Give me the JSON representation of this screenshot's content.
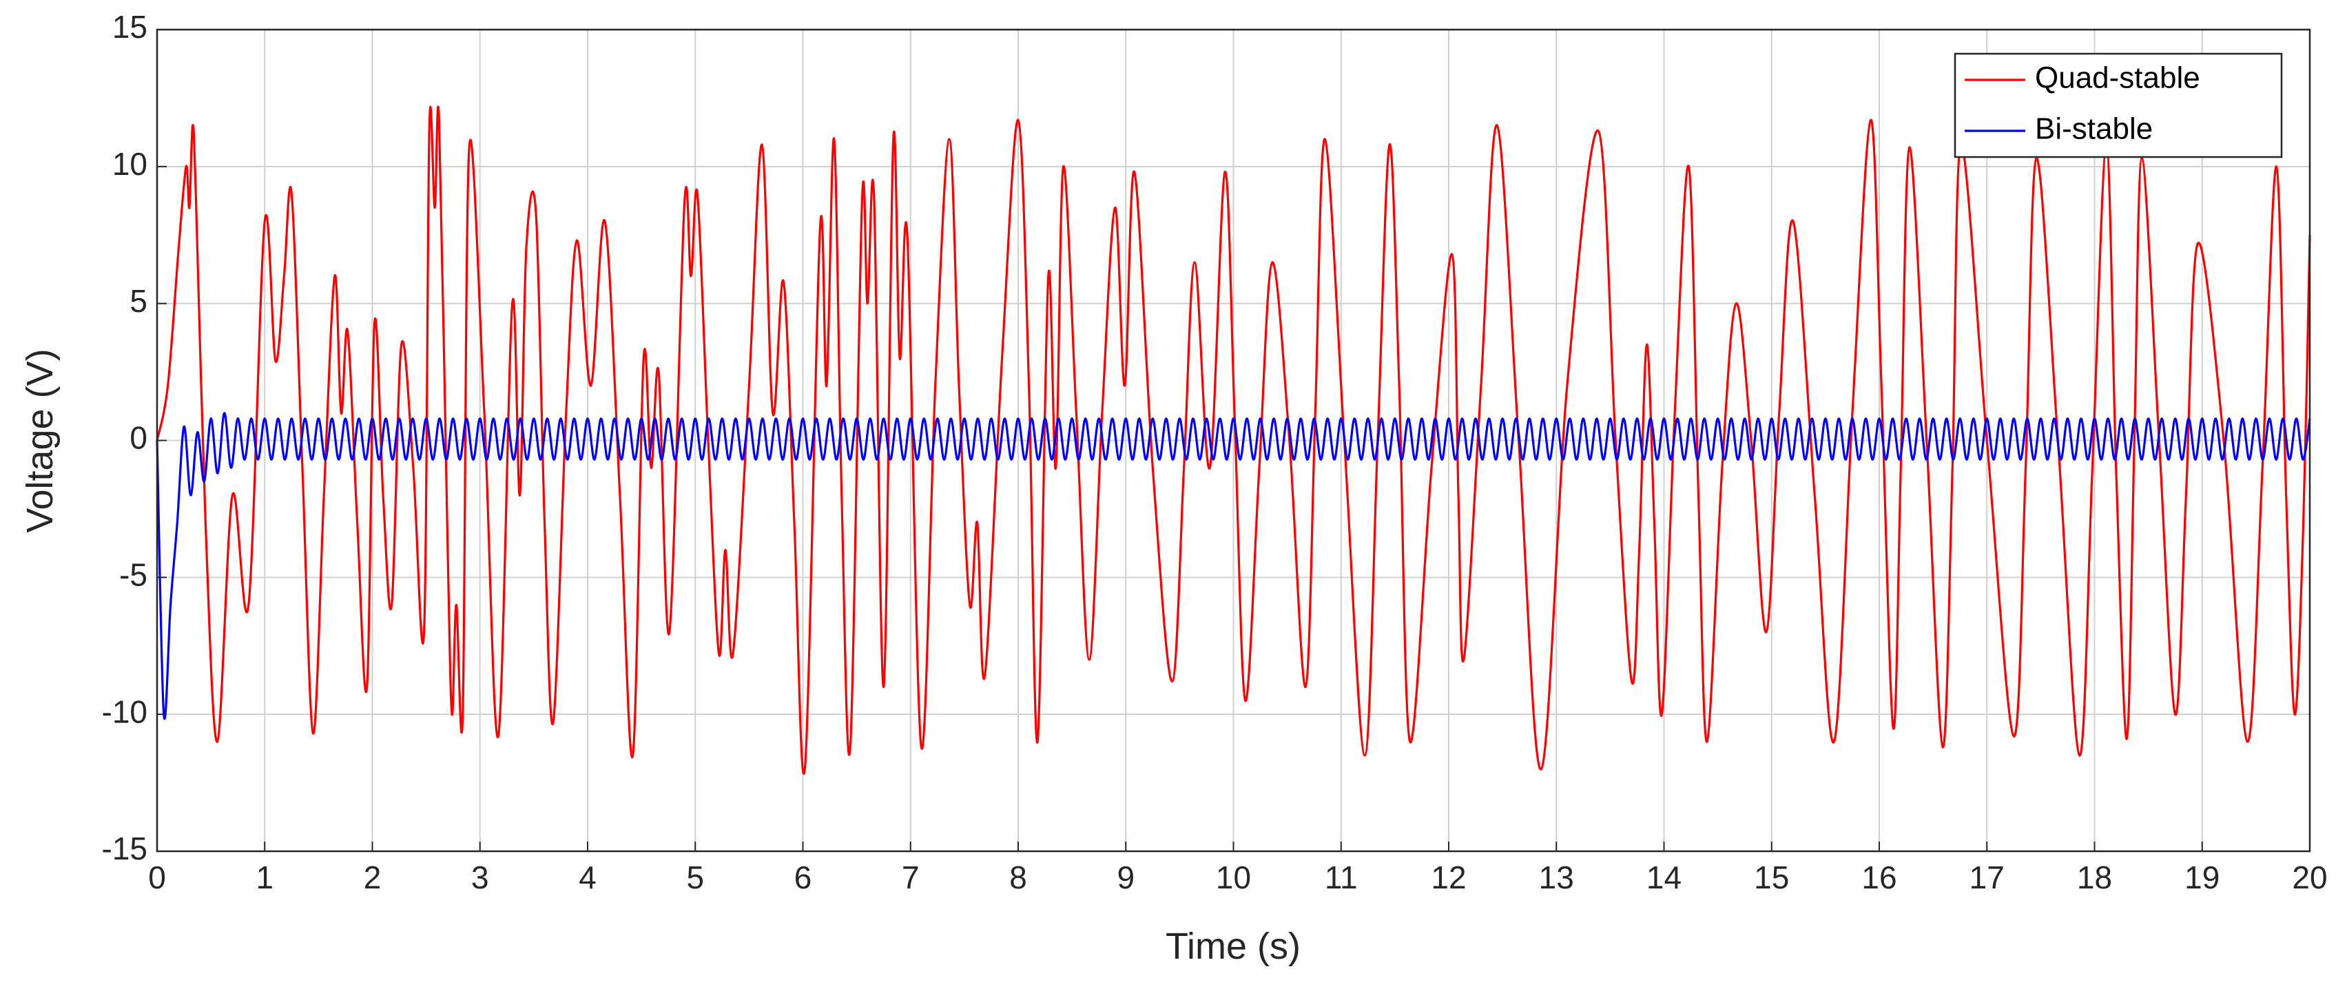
{
  "chart_data": {
    "type": "line",
    "xlabel": "Time (s)",
    "ylabel": "Voltage (V)",
    "xlim": [
      0,
      20
    ],
    "ylim": [
      -15,
      15
    ],
    "xticks": [
      0,
      1,
      2,
      3,
      4,
      5,
      6,
      7,
      8,
      9,
      10,
      11,
      12,
      13,
      14,
      15,
      16,
      17,
      18,
      19,
      20
    ],
    "yticks": [
      -15,
      -10,
      -5,
      0,
      5,
      10,
      15
    ],
    "grid": true,
    "legend": "top-right",
    "series": [
      {
        "name": "Quad-stable",
        "color": "#ff0000",
        "x": [
          0,
          0.1,
          0.2,
          0.27,
          0.3,
          0.33,
          0.36,
          0.45,
          0.56,
          0.7,
          0.85,
          1.0,
          1.1,
          1.18,
          1.25,
          1.35,
          1.45,
          1.55,
          1.65,
          1.71,
          1.77,
          1.86,
          1.95,
          2.02,
          2.1,
          2.18,
          2.27,
          2.38,
          2.48,
          2.53,
          2.58,
          2.62,
          2.7,
          2.74,
          2.78,
          2.84,
          2.9,
          3.04,
          3.17,
          3.3,
          3.37,
          3.43,
          3.52,
          3.6,
          3.68,
          3.8,
          3.9,
          4.03,
          4.16,
          4.3,
          4.42,
          4.52,
          4.59,
          4.66,
          4.76,
          4.9,
          4.96,
          5.02,
          5.12,
          5.22,
          5.28,
          5.35,
          5.5,
          5.62,
          5.72,
          5.82,
          5.92,
          6.02,
          6.16,
          6.22,
          6.29,
          6.36,
          6.44,
          6.55,
          6.6,
          6.66,
          6.75,
          6.84,
          6.9,
          6.97,
          7.1,
          7.23,
          7.36,
          7.45,
          7.55,
          7.62,
          7.69,
          7.85,
          8.0,
          8.1,
          8.18,
          8.28,
          8.35,
          8.42,
          8.54,
          8.66,
          8.78,
          8.9,
          8.99,
          9.08,
          9.25,
          9.43,
          9.54,
          9.64,
          9.78,
          9.92,
          10.01,
          10.11,
          10.24,
          10.36,
          10.52,
          10.67,
          10.76,
          10.85,
          11.03,
          11.22,
          11.34,
          11.45,
          11.54,
          11.64,
          11.84,
          12.03,
          12.09,
          12.14,
          12.3,
          12.45,
          12.65,
          12.86,
          13.1,
          13.39,
          13.55,
          13.7,
          13.77,
          13.84,
          13.91,
          13.98,
          14.1,
          14.23,
          14.32,
          14.4,
          14.54,
          14.67,
          14.81,
          14.95,
          15.07,
          15.2,
          15.4,
          15.58,
          15.75,
          15.92,
          16.02,
          16.13,
          16.2,
          16.28,
          16.44,
          16.59,
          16.68,
          16.76,
          17.0,
          17.25,
          17.36,
          17.46,
          17.66,
          17.86,
          17.98,
          18.11,
          18.2,
          18.3,
          18.37,
          18.44,
          18.6,
          18.75,
          18.85,
          18.96,
          19.2,
          19.42,
          19.56,
          19.69,
          19.78,
          19.86,
          19.94,
          20
        ],
        "values": [
          0,
          2,
          7,
          10,
          8.5,
          11.5,
          9,
          -3,
          -11,
          -2,
          -6,
          8,
          2.9,
          6,
          9,
          -1,
          -10.7,
          -2,
          6,
          1,
          4,
          -3,
          -9,
          4.3,
          -2,
          -6,
          3.5,
          -1,
          -7,
          11.5,
          8.5,
          11.7,
          -4,
          -10,
          -6,
          -10,
          10.7,
          1,
          -10.8,
          5,
          -2,
          7,
          8.3,
          -3,
          -10.3,
          1,
          7.3,
          2,
          8,
          -2,
          -11.5,
          3,
          -1,
          2.5,
          -7,
          8.7,
          6,
          9,
          0,
          -7.8,
          -4,
          -7.8,
          2,
          10.8,
          1,
          5.8,
          -3,
          -11.9,
          7.8,
          2,
          11,
          -2,
          -11.2,
          8.8,
          5,
          9,
          -9,
          11,
          3,
          7.5,
          -11.2,
          2,
          11,
          2,
          -6,
          -3,
          -8.6,
          3,
          11.7,
          2,
          -11,
          6,
          -1,
          10,
          1,
          -8,
          1,
          8.5,
          2,
          9.8,
          -1,
          -8.8,
          -1,
          6.5,
          -1,
          9.8,
          1,
          -9.5,
          -1,
          6.5,
          0,
          -9,
          1,
          11,
          0,
          -11.5,
          0,
          10.8,
          2,
          -11,
          -1,
          6.8,
          -2,
          -8,
          2,
          11.5,
          0,
          -12,
          2,
          11.3,
          0,
          -8.8,
          -4,
          3.5,
          -3,
          -10,
          1,
          10,
          -2,
          -11,
          -1,
          5,
          0,
          -7,
          1,
          8,
          -2,
          -11,
          1,
          11.7,
          2,
          -10.5,
          -1,
          10.7,
          0,
          -11.2,
          -1,
          10.8,
          0,
          -10.8,
          -1,
          10.3,
          0,
          -11.5,
          -1,
          10.8,
          -1,
          -10.9,
          0,
          10.3,
          0,
          -10,
          -2,
          7.2,
          0,
          -11,
          -1,
          10,
          -2,
          -10,
          -3,
          7.5
        ]
      },
      {
        "name": "Bi-stable",
        "color": "#0000ff",
        "x": [
          0,
          0.0625,
          0.125,
          0.1875,
          0.25,
          0.3125,
          0.375,
          0.4375,
          0.5,
          0.5625,
          0.625,
          0.6875,
          0.75,
          0.8125,
          0.875,
          0.9375,
          1,
          1.0625,
          1.125,
          1.1875,
          1.25,
          1.3125,
          1.375,
          1.4375,
          1.5,
          1.5625,
          1.625,
          1.6875,
          1.75,
          1.8125,
          1.875,
          1.9375,
          2,
          2.0625,
          2.125,
          2.1875,
          2.25,
          2.3125,
          2.375,
          2.4375,
          2.5,
          2.5625,
          2.625,
          2.6875,
          2.75,
          2.8125,
          2.875,
          2.9375,
          3,
          3.0625,
          3.125,
          3.1875,
          3.25,
          3.3125,
          3.375,
          3.4375,
          3.5,
          3.5625,
          3.625,
          3.6875,
          3.75,
          3.8125,
          3.875,
          3.9375,
          4,
          4.0625,
          4.125,
          4.1875,
          4.25,
          4.3125,
          4.375,
          4.4375,
          4.5,
          4.5625,
          4.625,
          4.6875,
          4.75,
          4.8125,
          4.875,
          4.9375,
          5,
          5.0625,
          5.125,
          5.1875,
          5.25,
          5.3125,
          5.375,
          5.4375,
          5.5,
          5.5625,
          5.625,
          5.6875,
          5.75,
          5.8125,
          5.875,
          5.9375,
          6,
          6.0625,
          6.125,
          6.1875,
          6.25,
          6.3125,
          6.375,
          6.4375,
          6.5,
          6.5625,
          6.625,
          6.6875,
          6.75,
          6.8125,
          6.875,
          6.9375,
          7,
          7.0625,
          7.125,
          7.1875,
          7.25,
          7.3125,
          7.375,
          7.4375,
          7.5,
          7.5625,
          7.625,
          7.6875,
          7.75,
          7.8125,
          7.875,
          7.9375,
          8,
          8.0625,
          8.125,
          8.1875,
          8.25,
          8.3125,
          8.375,
          8.4375,
          8.5,
          8.5625,
          8.625,
          8.6875,
          8.75,
          8.8125,
          8.875,
          8.9375,
          9,
          9.0625,
          9.125,
          9.1875,
          9.25,
          9.3125,
          9.375,
          9.4375,
          9.5,
          9.5625,
          9.625,
          9.6875,
          9.75,
          9.8125,
          9.875,
          9.9375,
          10,
          10.0625,
          10.125,
          10.1875,
          10.25,
          10.3125,
          10.375,
          10.4375,
          10.5,
          10.5625,
          10.625,
          10.6875,
          10.75,
          10.8125,
          10.875,
          10.9375,
          11,
          11.0625,
          11.125,
          11.1875,
          11.25,
          11.3125,
          11.375,
          11.4375,
          11.5,
          11.5625,
          11.625,
          11.6875,
          11.75,
          11.8125,
          11.875,
          11.9375,
          12,
          12.0625,
          12.125,
          12.1875,
          12.25,
          12.3125,
          12.375,
          12.4375,
          12.5,
          12.5625,
          12.625,
          12.6875,
          12.75,
          12.8125,
          12.875,
          12.9375,
          13,
          13.0625,
          13.125,
          13.1875,
          13.25,
          13.3125,
          13.375,
          13.4375,
          13.5,
          13.5625,
          13.625,
          13.6875,
          13.75,
          13.8125,
          13.875,
          13.9375,
          14,
          14.0625,
          14.125,
          14.1875,
          14.25,
          14.3125,
          14.375,
          14.4375,
          14.5,
          14.5625,
          14.625,
          14.6875,
          14.75,
          14.8125,
          14.875,
          14.9375,
          15,
          15.0625,
          15.125,
          15.1875,
          15.25,
          15.3125,
          15.375,
          15.4375,
          15.5,
          15.5625,
          15.625,
          15.6875,
          15.75,
          15.8125,
          15.875,
          15.9375,
          16,
          16.0625,
          16.125,
          16.1875,
          16.25,
          16.3125,
          16.375,
          16.4375,
          16.5,
          16.5625,
          16.625,
          16.6875,
          16.75,
          16.8125,
          16.875,
          16.9375,
          17,
          17.0625,
          17.125,
          17.1875,
          17.25,
          17.3125,
          17.375,
          17.4375,
          17.5,
          17.5625,
          17.625,
          17.6875,
          17.75,
          17.8125,
          17.875,
          17.9375,
          18,
          18.0625,
          18.125,
          18.1875,
          18.25,
          18.3125,
          18.375,
          18.4375,
          18.5,
          18.5625,
          18.625,
          18.6875,
          18.75,
          18.8125,
          18.875,
          18.9375,
          19,
          19.0625,
          19.125,
          19.1875,
          19.25,
          19.3125,
          19.375,
          19.4375,
          19.5,
          19.5625,
          19.625,
          19.6875,
          19.75,
          19.8125,
          19.875,
          19.9375,
          20
        ],
        "values": [
          0,
          -10,
          -6,
          -3,
          0.5,
          -2,
          0.3,
          -1.5,
          0.8,
          -1.2,
          1,
          -1,
          0.8,
          -0.7,
          0.8,
          -0.7,
          0.8,
          -0.7,
          0.8,
          -0.7,
          0.8,
          -0.7,
          0.8,
          -0.7,
          0.8,
          -0.7,
          0.8,
          -0.7,
          0.8,
          -0.7,
          0.8,
          -0.7,
          0.8,
          -0.7,
          0.8,
          -0.7,
          0.8,
          -0.7,
          0.8,
          -0.7,
          0.8,
          -0.7,
          0.8,
          -0.7,
          0.8,
          -0.7,
          0.8,
          -0.7,
          0.8,
          -0.7,
          0.8,
          -0.7,
          0.8,
          -0.7,
          0.8,
          -0.7,
          0.8,
          -0.7,
          0.8,
          -0.7,
          0.8,
          -0.7,
          0.8,
          -0.7,
          0.8,
          -0.7,
          0.8,
          -0.7,
          0.8,
          -0.7,
          0.8,
          -0.7,
          0.8,
          -0.7,
          0.8,
          -0.7,
          0.8,
          -0.7,
          0.8,
          -0.7,
          0.8,
          -0.7,
          0.8,
          -0.7,
          0.8,
          -0.7,
          0.8,
          -0.7,
          0.8,
          -0.7,
          0.8,
          -0.7,
          0.8,
          -0.7,
          0.8,
          -0.7,
          0.8,
          -0.7,
          0.8,
          -0.7,
          0.8,
          -0.7,
          0.8,
          -0.7,
          0.8,
          -0.7,
          0.8,
          -0.7,
          0.8,
          -0.7,
          0.8,
          -0.7,
          0.8,
          -0.7,
          0.8,
          -0.7,
          0.8,
          -0.7,
          0.8,
          -0.7,
          0.8,
          -0.7,
          0.8,
          -0.7,
          0.8,
          -0.7,
          0.8,
          -0.7,
          0.8,
          -0.7,
          0.8,
          -0.7,
          0.8,
          -0.7,
          0.8,
          -0.7,
          0.8,
          -0.7,
          0.8,
          -0.7,
          0.8,
          -0.7,
          0.8,
          -0.7,
          0.8,
          -0.7,
          0.8,
          -0.7,
          0.8,
          -0.7,
          0.8,
          -0.7,
          0.8,
          -0.7,
          0.8,
          -0.7,
          0.8,
          -0.7,
          0.8,
          -0.7,
          0.8,
          -0.7,
          0.8,
          -0.7,
          0.8,
          -0.7,
          0.8,
          -0.7,
          0.8,
          -0.7,
          0.8,
          -0.7,
          0.8,
          -0.7,
          0.8,
          -0.7,
          0.8,
          -0.7,
          0.8,
          -0.7,
          0.8,
          -0.7,
          0.8,
          -0.7,
          0.8,
          -0.7,
          0.8,
          -0.7,
          0.8,
          -0.7,
          0.8,
          -0.7,
          0.8,
          -0.7,
          0.8,
          -0.7,
          0.8,
          -0.7,
          0.8,
          -0.7,
          0.8,
          -0.7,
          0.8,
          -0.7,
          0.8,
          -0.7,
          0.8,
          -0.7,
          0.8,
          -0.7,
          0.8,
          -0.7,
          0.8,
          -0.7,
          0.8,
          -0.7,
          0.8,
          -0.7,
          0.8,
          -0.7,
          0.8,
          -0.7,
          0.8,
          -0.7,
          0.8,
          -0.7,
          0.8,
          -0.7,
          0.8,
          -0.7,
          0.8,
          -0.7,
          0.8,
          -0.7,
          0.8,
          -0.7,
          0.8,
          -0.7,
          0.8,
          -0.7,
          0.8,
          -0.7,
          0.8,
          -0.7,
          0.8,
          -0.7,
          0.8,
          -0.7,
          0.8,
          -0.7,
          0.8,
          -0.7,
          0.8,
          -0.7,
          0.8,
          -0.7,
          0.8,
          -0.7,
          0.8,
          -0.7,
          0.8,
          -0.7,
          0.8,
          -0.7,
          0.8,
          -0.7,
          0.8,
          -0.7,
          0.8,
          -0.7,
          0.8,
          -0.7,
          0.8,
          -0.7,
          0.8,
          -0.7,
          0.8,
          -0.7,
          0.8,
          -0.7,
          0.8,
          -0.7,
          0.8,
          -0.7,
          0.8,
          -0.7,
          0.8,
          -0.7,
          0.8,
          -0.7,
          0.8,
          -0.7,
          0.8,
          -0.7,
          0.8,
          -0.7,
          0.8,
          -0.7,
          0.8,
          -0.7,
          0.8,
          -0.7,
          0.8,
          -0.7,
          0.8,
          -0.7,
          0.8,
          -0.7,
          0.8,
          -0.7,
          0.8,
          -0.7,
          0.8,
          -0.7,
          0.8,
          -0.7,
          0.8,
          -0.7,
          0.8,
          -0.7,
          0.8
        ]
      }
    ]
  }
}
